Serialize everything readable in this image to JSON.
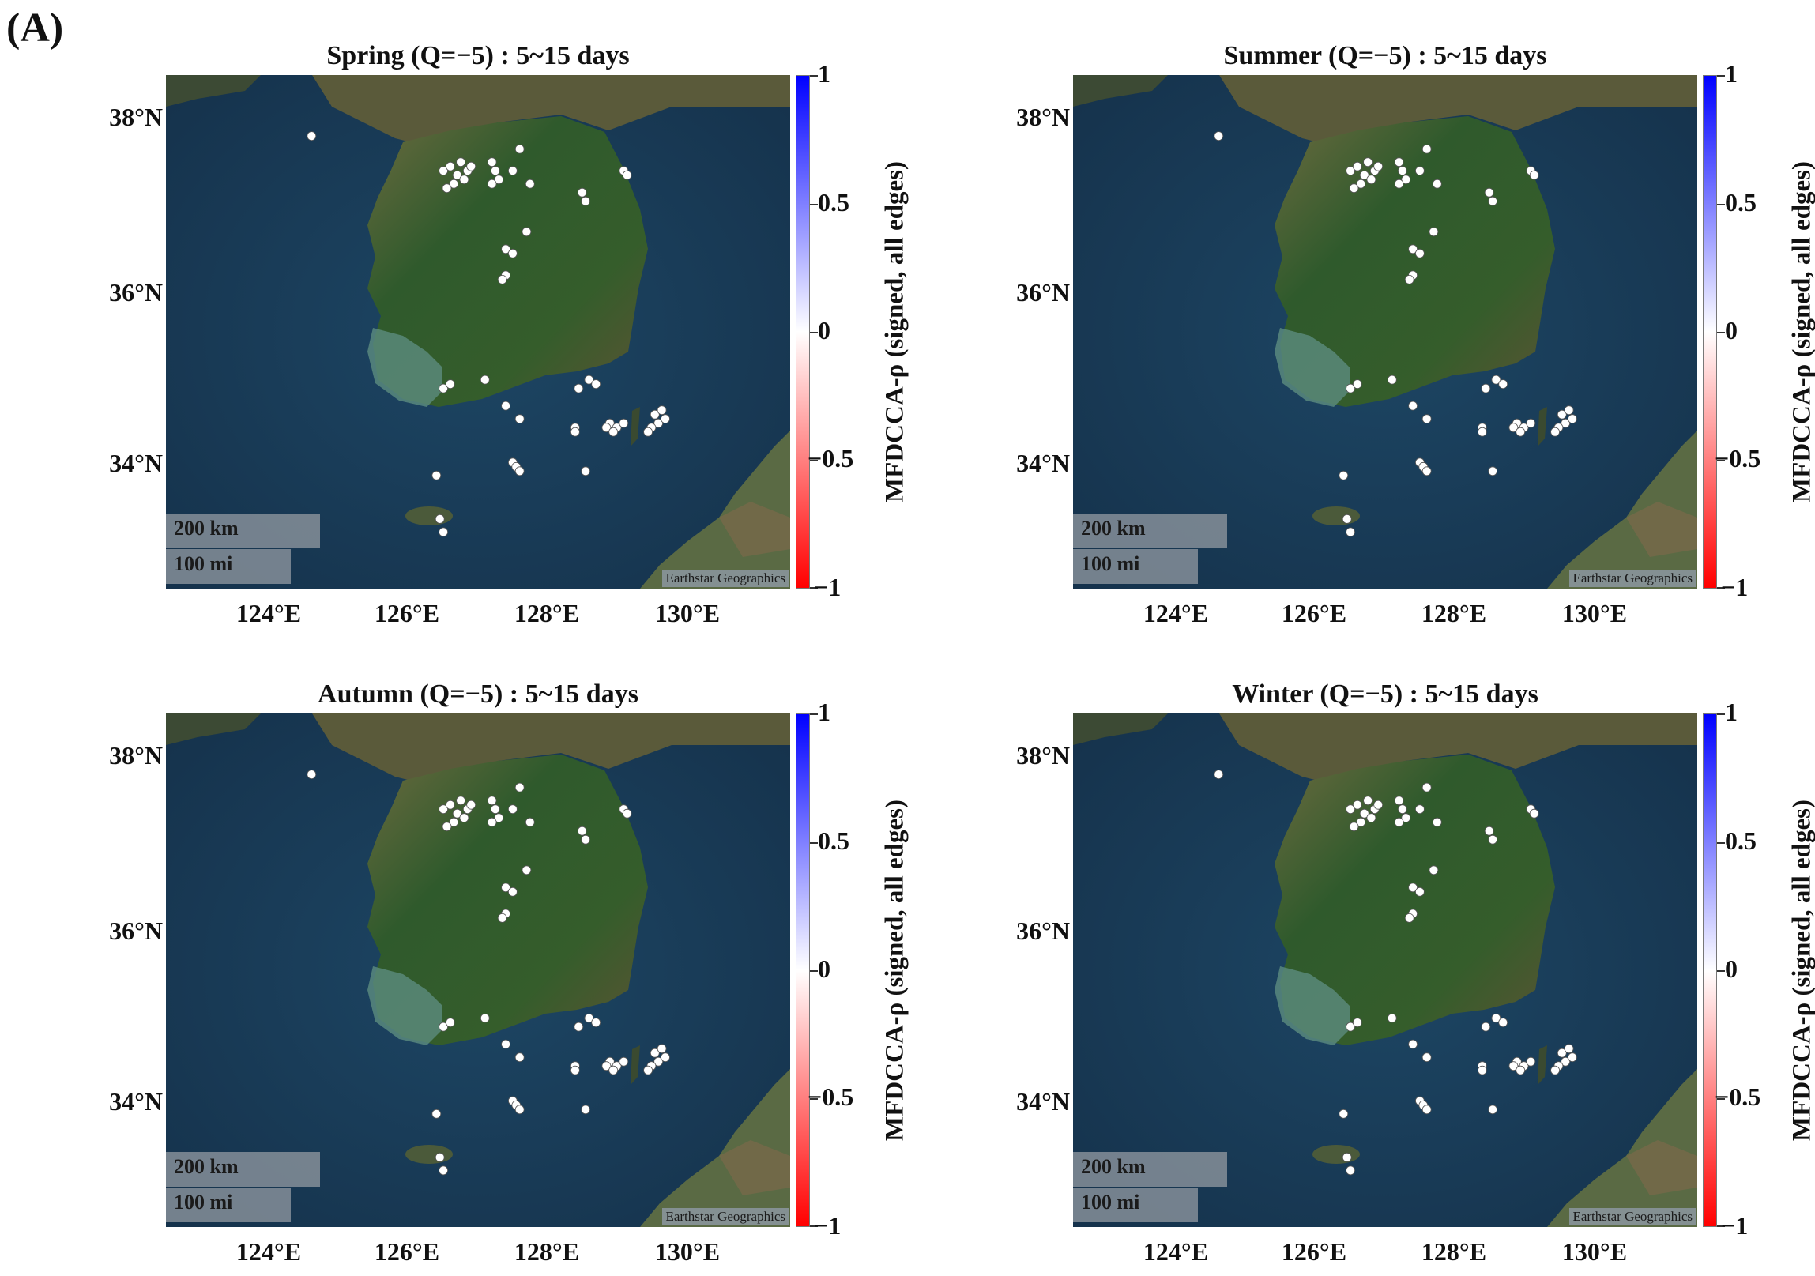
{
  "figure_label": "(A)",
  "panels": [
    {
      "title": "Spring (Q=−5) : 5~15 days"
    },
    {
      "title": "Summer (Q=−5) : 5~15 days"
    },
    {
      "title": "Autumn (Q=−5) : 5~15 days"
    },
    {
      "title": "Winter (Q=−5) : 5~15 days"
    }
  ],
  "lat_ticks": [
    "38°N",
    "36°N",
    "34°N"
  ],
  "lon_ticks": [
    "124°E",
    "126°E",
    "128°E",
    "130°E"
  ],
  "colorbar": {
    "label": "MFDCCA-ρ (signed, all edges)",
    "ticks": [
      "1",
      "0.5",
      "0",
      "−0.5",
      "−1"
    ],
    "colors": [
      "#0000ff",
      "#ffffff",
      "#ff0000"
    ]
  },
  "scalebar": {
    "km": "200 km",
    "mi": "100 mi"
  },
  "credit": "Earthstar Geographics",
  "colors": {
    "sea": "#173a56",
    "land": "#2f5a2c",
    "station": "#ffffff"
  },
  "stations": [
    {
      "lon": 124.6,
      "lat": 37.9
    },
    {
      "lon": 126.5,
      "lat": 37.5
    },
    {
      "lon": 126.6,
      "lat": 37.55
    },
    {
      "lon": 126.7,
      "lat": 37.45
    },
    {
      "lon": 126.75,
      "lat": 37.6
    },
    {
      "lon": 126.85,
      "lat": 37.5
    },
    {
      "lon": 126.9,
      "lat": 37.55
    },
    {
      "lon": 126.65,
      "lat": 37.35
    },
    {
      "lon": 126.55,
      "lat": 37.3
    },
    {
      "lon": 126.8,
      "lat": 37.4
    },
    {
      "lon": 127.2,
      "lat": 37.6
    },
    {
      "lon": 127.25,
      "lat": 37.5
    },
    {
      "lon": 127.3,
      "lat": 37.4
    },
    {
      "lon": 127.2,
      "lat": 37.35
    },
    {
      "lon": 127.5,
      "lat": 37.5
    },
    {
      "lon": 127.6,
      "lat": 37.75
    },
    {
      "lon": 127.75,
      "lat": 37.35
    },
    {
      "lon": 128.5,
      "lat": 37.25
    },
    {
      "lon": 128.55,
      "lat": 37.15
    },
    {
      "lon": 129.1,
      "lat": 37.5
    },
    {
      "lon": 129.15,
      "lat": 37.45
    },
    {
      "lon": 127.7,
      "lat": 36.8
    },
    {
      "lon": 127.4,
      "lat": 36.6
    },
    {
      "lon": 127.5,
      "lat": 36.55
    },
    {
      "lon": 127.4,
      "lat": 36.3
    },
    {
      "lon": 127.35,
      "lat": 36.25
    },
    {
      "lon": 126.5,
      "lat": 35.0
    },
    {
      "lon": 126.6,
      "lat": 35.05
    },
    {
      "lon": 127.1,
      "lat": 35.1
    },
    {
      "lon": 128.6,
      "lat": 35.1
    },
    {
      "lon": 128.7,
      "lat": 35.05
    },
    {
      "lon": 128.45,
      "lat": 35.0
    },
    {
      "lon": 128.4,
      "lat": 34.55
    },
    {
      "lon": 128.4,
      "lat": 34.5
    },
    {
      "lon": 128.9,
      "lat": 34.6
    },
    {
      "lon": 129.0,
      "lat": 34.55
    },
    {
      "lon": 129.1,
      "lat": 34.6
    },
    {
      "lon": 128.85,
      "lat": 34.55
    },
    {
      "lon": 128.95,
      "lat": 34.5
    },
    {
      "lon": 129.55,
      "lat": 34.7
    },
    {
      "lon": 129.6,
      "lat": 34.6
    },
    {
      "lon": 129.5,
      "lat": 34.55
    },
    {
      "lon": 129.45,
      "lat": 34.5
    },
    {
      "lon": 129.65,
      "lat": 34.75
    },
    {
      "lon": 129.7,
      "lat": 34.65
    },
    {
      "lon": 127.4,
      "lat": 34.8
    },
    {
      "lon": 127.6,
      "lat": 34.65
    },
    {
      "lon": 127.5,
      "lat": 34.15
    },
    {
      "lon": 127.55,
      "lat": 34.1
    },
    {
      "lon": 127.6,
      "lat": 34.05
    },
    {
      "lon": 126.4,
      "lat": 34.0
    },
    {
      "lon": 128.55,
      "lat": 34.05
    },
    {
      "lon": 126.45,
      "lat": 33.5
    },
    {
      "lon": 126.5,
      "lat": 33.35
    }
  ]
}
